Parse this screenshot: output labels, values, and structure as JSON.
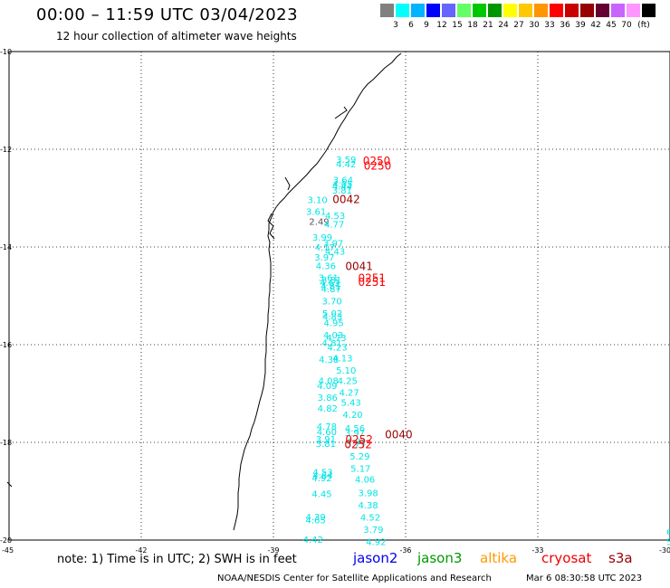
{
  "title": "00:00 – 11:59 UTC 03/04/2023",
  "subtitle": "12 hour collection of altimeter wave heights",
  "legend": {
    "colors": [
      "#808080",
      "#00ffff",
      "#00b4ff",
      "#0000ff",
      "#6464ff",
      "#64ff64",
      "#00c800",
      "#009600",
      "#ffff00",
      "#ffc800",
      "#ff9600",
      "#ff0000",
      "#c80000",
      "#960000",
      "#640032",
      "#c864ff",
      "#ff96ff",
      "#000000"
    ],
    "labels": [
      "3",
      "6",
      "9",
      "12",
      "15",
      "18",
      "21",
      "24",
      "27",
      "30",
      "33",
      "36",
      "39",
      "42",
      "45",
      "70",
      "(ft)"
    ]
  },
  "map": {
    "lat_labels": [
      "-10",
      "-12",
      "-14",
      "-16",
      "-18",
      "-20"
    ],
    "lon_labels": [
      "-45",
      "-42",
      "-39",
      "-36",
      "-33",
      "-30"
    ],
    "wave_heights": [
      {
        "v": "3.59",
        "lon": -37.58,
        "lat": -12.2
      },
      {
        "v": "4.42",
        "lon": -37.58,
        "lat": -12.3
      },
      {
        "v": "3.64",
        "lon": -37.65,
        "lat": -12.62
      },
      {
        "v": "4.05",
        "lon": -37.66,
        "lat": -12.7
      },
      {
        "v": "4.44",
        "lon": -37.67,
        "lat": -12.75
      },
      {
        "v": "3.81",
        "lon": -37.67,
        "lat": -12.83
      },
      {
        "v": "3.10",
        "lon": -38.23,
        "lat": -13.03
      },
      {
        "v": "3.61",
        "lon": -38.26,
        "lat": -13.27
      },
      {
        "v": "4.53",
        "lon": -37.83,
        "lat": -13.35
      },
      {
        "v": "2.49",
        "lon": -38.19,
        "lat": -13.47
      },
      {
        "v": "4.77",
        "lon": -37.85,
        "lat": -13.53
      },
      {
        "v": "3.99",
        "lon": -38.12,
        "lat": -13.8
      },
      {
        "v": "3.97",
        "lon": -37.87,
        "lat": -13.92
      },
      {
        "v": "4.17",
        "lon": -38.06,
        "lat": -14.0
      },
      {
        "v": "4.43",
        "lon": -37.83,
        "lat": -14.08
      },
      {
        "v": "3.97",
        "lon": -38.07,
        "lat": -14.2
      },
      {
        "v": "4.36",
        "lon": -38.04,
        "lat": -14.38
      },
      {
        "v": "3.61",
        "lon": -37.98,
        "lat": -14.62
      },
      {
        "v": "3.81",
        "lon": -37.91,
        "lat": -14.67
      },
      {
        "v": "4.63",
        "lon": -37.95,
        "lat": -14.72
      },
      {
        "v": "4.81",
        "lon": -37.93,
        "lat": -14.8
      },
      {
        "v": "4.87",
        "lon": -37.92,
        "lat": -14.85
      },
      {
        "v": "3.70",
        "lon": -37.9,
        "lat": -15.1
      },
      {
        "v": "5.02",
        "lon": -37.89,
        "lat": -15.35
      },
      {
        "v": "4.83",
        "lon": -37.89,
        "lat": -15.42
      },
      {
        "v": "4.95",
        "lon": -37.86,
        "lat": -15.55
      },
      {
        "v": "4.03",
        "lon": -37.87,
        "lat": -15.8
      },
      {
        "v": "4.73",
        "lon": -37.8,
        "lat": -15.85
      },
      {
        "v": "4.81",
        "lon": -37.9,
        "lat": -15.95
      },
      {
        "v": "4.23",
        "lon": -37.78,
        "lat": -16.05
      },
      {
        "v": "4.13",
        "lon": -37.66,
        "lat": -16.27
      },
      {
        "v": "4.38",
        "lon": -37.97,
        "lat": -16.3
      },
      {
        "v": "5.10",
        "lon": -37.58,
        "lat": -16.52
      },
      {
        "v": "4.08",
        "lon": -37.98,
        "lat": -16.73
      },
      {
        "v": "4.25",
        "lon": -37.55,
        "lat": -16.73
      },
      {
        "v": "4.09",
        "lon": -38.01,
        "lat": -16.83
      },
      {
        "v": "4.27",
        "lon": -37.51,
        "lat": -16.97
      },
      {
        "v": "3.86",
        "lon": -38.0,
        "lat": -17.07
      },
      {
        "v": "5.43",
        "lon": -37.47,
        "lat": -17.18
      },
      {
        "v": "4.82",
        "lon": -38.0,
        "lat": -17.3
      },
      {
        "v": "4.20",
        "lon": -37.43,
        "lat": -17.43
      },
      {
        "v": "4.78",
        "lon": -38.02,
        "lat": -17.67
      },
      {
        "v": "4.56",
        "lon": -37.38,
        "lat": -17.7
      },
      {
        "v": "4.60",
        "lon": -38.02,
        "lat": -17.78
      },
      {
        "v": "3.97",
        "lon": -37.38,
        "lat": -17.8
      },
      {
        "v": "3.91",
        "lon": -38.04,
        "lat": -17.93
      },
      {
        "v": "4.01",
        "lon": -37.35,
        "lat": -17.97
      },
      {
        "v": "3.81",
        "lon": -38.04,
        "lat": -18.02
      },
      {
        "v": "3.77",
        "lon": -37.36,
        "lat": -18.03
      },
      {
        "v": "5.29",
        "lon": -37.27,
        "lat": -18.28
      },
      {
        "v": "5.17",
        "lon": -37.25,
        "lat": -18.53
      },
      {
        "v": "4.53",
        "lon": -38.11,
        "lat": -18.6
      },
      {
        "v": "4.64",
        "lon": -38.11,
        "lat": -18.67
      },
      {
        "v": "4.92",
        "lon": -38.13,
        "lat": -18.72
      },
      {
        "v": "4.06",
        "lon": -37.15,
        "lat": -18.75
      },
      {
        "v": "4.45",
        "lon": -38.13,
        "lat": -19.05
      },
      {
        "v": "3.98",
        "lon": -37.08,
        "lat": -19.03
      },
      {
        "v": "4.38",
        "lon": -37.08,
        "lat": -19.28
      },
      {
        "v": "4.39",
        "lon": -38.27,
        "lat": -19.52
      },
      {
        "v": "4.52",
        "lon": -37.03,
        "lat": -19.53
      },
      {
        "v": "4.65",
        "lon": -38.27,
        "lat": -19.58
      },
      {
        "v": "3.79",
        "lon": -36.96,
        "lat": -19.78
      },
      {
        "v": "4.42",
        "lon": -38.33,
        "lat": -19.98
      },
      {
        "v": "4.92",
        "lon": -36.9,
        "lat": -20.03
      },
      {
        "v": "6",
        "lon": -30.08,
        "lat": -19.82
      },
      {
        "v": "5",
        "lon": -30.08,
        "lat": -20.03
      }
    ],
    "times": [
      {
        "t": "0250",
        "lon": -36.97,
        "lat": -12.22,
        "color": "#ff0000"
      },
      {
        "t": "0250",
        "lon": -36.95,
        "lat": -12.32,
        "color": "#ff0000"
      },
      {
        "t": "0042",
        "lon": -37.66,
        "lat": -13.01,
        "color": "#990000"
      },
      {
        "t": "0041",
        "lon": -37.37,
        "lat": -14.38,
        "color": "#990000"
      },
      {
        "t": "0251",
        "lon": -37.08,
        "lat": -14.62,
        "color": "#ff0000"
      },
      {
        "t": "0251",
        "lon": -37.08,
        "lat": -14.7,
        "color": "#ff0000"
      },
      {
        "t": "0040",
        "lon": -36.47,
        "lat": -17.82,
        "color": "#990000"
      },
      {
        "t": "0252",
        "lon": -37.37,
        "lat": -17.93,
        "color": "#ff0000"
      },
      {
        "t": "0252",
        "lon": -37.39,
        "lat": -18.03,
        "color": "#ff0000"
      }
    ]
  },
  "note": "note: 1) Time is in UTC; 2) SWH is in feet",
  "satellites": [
    {
      "name": "jason2",
      "color": "#0000ee"
    },
    {
      "name": "jason3",
      "color": "#009900"
    },
    {
      "name": "altika",
      "color": "#ff9900"
    },
    {
      "name": "cryosat",
      "color": "#ee0000"
    },
    {
      "name": "s3a",
      "color": "#990000"
    }
  ],
  "footer": "NOAA/NESDIS Center for Satellite Applications and Research",
  "generated": "Mar  6 08:30:58 UTC 2023"
}
